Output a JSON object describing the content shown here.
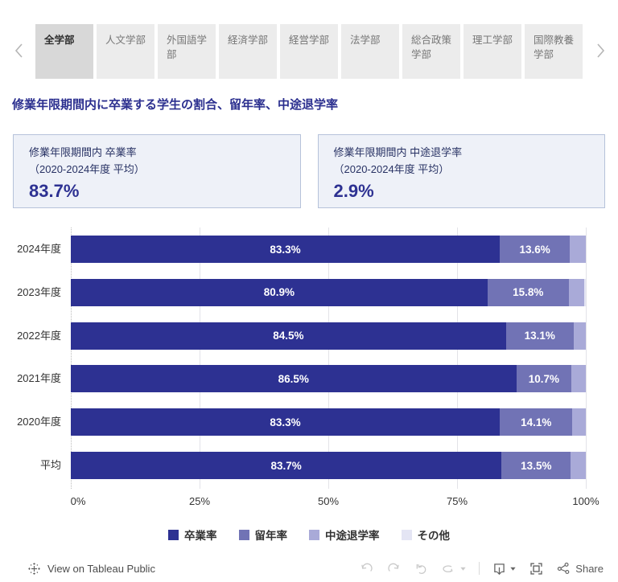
{
  "tabs": {
    "items": [
      {
        "label": "全学部",
        "selected": true
      },
      {
        "label": "人文学部",
        "selected": false
      },
      {
        "label": "外国語学部",
        "selected": false
      },
      {
        "label": "経済学部",
        "selected": false
      },
      {
        "label": "経営学部",
        "selected": false
      },
      {
        "label": "法学部",
        "selected": false
      },
      {
        "label": "総合政策学部",
        "selected": false
      },
      {
        "label": "理工学部",
        "selected": false
      },
      {
        "label": "国際教養学部",
        "selected": false
      }
    ]
  },
  "title": "修業年限期間内に卒業する学生の割合、留年率、中途退学率",
  "cards": [
    {
      "line1": "修業年限期間内 卒業率",
      "line2": "（2020-2024年度 平均）",
      "value": "83.7%"
    },
    {
      "line1": "修業年限期間内 中途退学率",
      "line2": "（2020-2024年度 平均）",
      "value": "2.9%"
    }
  ],
  "chart_data": {
    "type": "bar",
    "orientation": "horizontal",
    "stacked": true,
    "categories": [
      "2024年度",
      "2023年度",
      "2022年度",
      "2021年度",
      "2020年度",
      "平均"
    ],
    "series": [
      {
        "name": "卒業率",
        "color": "#2d3192",
        "values": [
          83.3,
          80.9,
          84.5,
          86.5,
          83.3,
          83.7
        ],
        "labels": [
          "83.3%",
          "80.9%",
          "84.5%",
          "86.5%",
          "83.3%",
          "83.7%"
        ]
      },
      {
        "name": "留年率",
        "color": "#7173b5",
        "values": [
          13.6,
          15.8,
          13.1,
          10.7,
          14.1,
          13.5
        ],
        "labels": [
          "13.6%",
          "15.8%",
          "13.1%",
          "10.7%",
          "14.1%",
          "13.5%"
        ]
      },
      {
        "name": "中途退学率",
        "color": "#a9aad8",
        "values": [
          3.1,
          3.0,
          2.4,
          2.8,
          2.6,
          2.9
        ],
        "labels": null
      },
      {
        "name": "その他",
        "color": "#e4e5f4",
        "values": [
          0.0,
          0.3,
          0.0,
          0.0,
          0.0,
          0.0
        ],
        "labels": null
      }
    ],
    "xlim": [
      0,
      100
    ],
    "grid_ticks": [
      0,
      25,
      50,
      75,
      100
    ],
    "x_ticks": [
      {
        "label": "0%",
        "value": 0
      },
      {
        "label": "25%",
        "value": 25
      },
      {
        "label": "50%",
        "value": 50
      },
      {
        "label": "75%",
        "value": 75
      },
      {
        "label": "100%",
        "value": 100
      }
    ],
    "legend_position": "bottom",
    "grid": true
  },
  "footer": {
    "view_label": "View on Tableau Public",
    "share_label": "Share"
  }
}
